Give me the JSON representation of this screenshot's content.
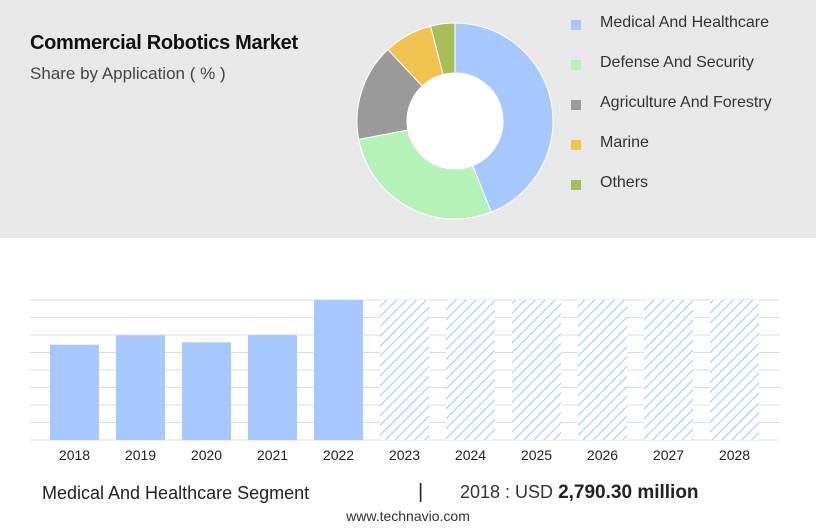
{
  "header": {
    "title": "Commercial Robotics Market",
    "subtitle": "Share by Application ( % )"
  },
  "chart_data": [
    {
      "type": "pie",
      "variant": "donut",
      "title": "Share by Application ( % )",
      "slices": [
        {
          "label": "Medical And Healthcare",
          "value": 44,
          "color": "#a6c8ff"
        },
        {
          "label": "Defense And Security",
          "value": 28,
          "color": "#b5f2b8"
        },
        {
          "label": "Agriculture And Forestry",
          "value": 16,
          "color": "#9a9a9a"
        },
        {
          "label": "Marine",
          "value": 8,
          "color": "#f0c24f"
        },
        {
          "label": "Others",
          "value": 4,
          "color": "#a5be5a"
        }
      ],
      "legend_position": "right"
    },
    {
      "type": "bar",
      "categories": [
        "2018",
        "2019",
        "2020",
        "2021",
        "2022",
        "2023",
        "2024",
        "2025",
        "2026",
        "2027",
        "2028"
      ],
      "values": [
        2790.3,
        3060,
        2860,
        3070,
        4100,
        4100,
        4100,
        4100,
        4100,
        4100,
        4100
      ],
      "forecast": [
        false,
        false,
        false,
        false,
        false,
        true,
        true,
        true,
        true,
        true,
        true
      ],
      "ylim": [
        0,
        4100
      ],
      "grid": true,
      "bar_color": "#a6c8ff",
      "forecast_pattern": "diagonal-hatch"
    }
  ],
  "footer": {
    "segment": "Medical And Healthcare Segment",
    "separator": "|",
    "value_prefix": "2018 : USD",
    "value_amount": "2,790.30 million"
  },
  "source": "www.technavio.com"
}
